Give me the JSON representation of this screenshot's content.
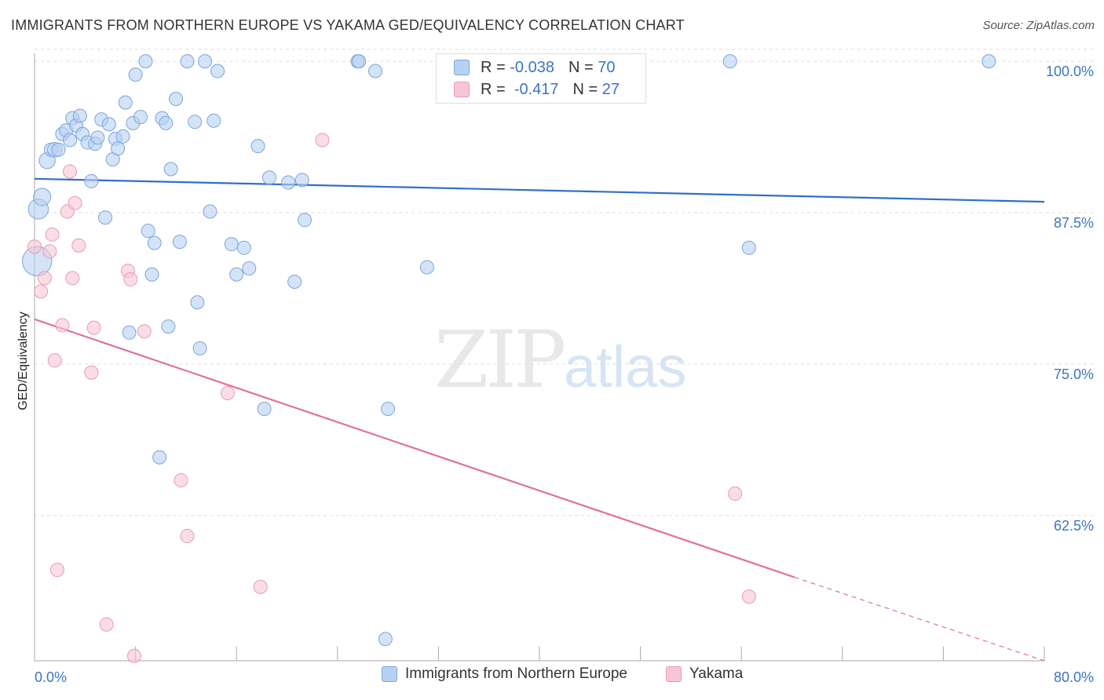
{
  "title": "IMMIGRANTS FROM NORTHERN EUROPE VS YAKAMA GED/EQUIVALENCY CORRELATION CHART",
  "source": "Source: ZipAtlas.com",
  "watermark": {
    "zip": "ZIP",
    "atlas": "atlas"
  },
  "stats": {
    "series1": {
      "r_label": "R =",
      "r": "-0.038",
      "n_label": "N =",
      "n": "70"
    },
    "series2": {
      "r_label": "R =",
      "r": "-0.417",
      "n_label": "N =",
      "n": "27"
    }
  },
  "colors": {
    "blue_fill": "#b7d1f2",
    "blue_stroke": "#7aa6dd",
    "blue_line": "#2f6fcc",
    "pink_fill": "#f7c6d4",
    "pink_stroke": "#eb9ab2",
    "pink_line": "#e0729a",
    "axis_text": "#3d74c6",
    "grid": "#dddddd"
  },
  "chart_data": {
    "type": "scatter",
    "title": "IMMIGRANTS FROM NORTHERN EUROPE VS YAKAMA GED/EQUIVALENCY CORRELATION CHART",
    "xlabel": "",
    "ylabel": "GED/Equivalency",
    "xlim": [
      0,
      80
    ],
    "ylim": [
      50.5,
      101.5
    ],
    "x_tick_labels": [
      "0.0%",
      "80.0%"
    ],
    "y_ticks": [
      62.5,
      75.0,
      87.5,
      100.0
    ],
    "y_tick_labels": [
      "62.5%",
      "75.0%",
      "87.5%",
      "100.0%"
    ],
    "grid": true,
    "legend_position": "bottom",
    "series": [
      {
        "name": "Immigrants from Northern Europe",
        "color": "blue",
        "trend": {
          "x0": 0,
          "y0": 90.3,
          "x1": 80,
          "y1": 88.4
        },
        "points": [
          [
            0.2,
            83.5,
            2.2
          ],
          [
            0.3,
            87.8,
            1.5
          ],
          [
            0.6,
            88.8,
            1.3
          ],
          [
            1.0,
            91.8,
            1.2
          ],
          [
            1.3,
            92.7,
            1.0
          ],
          [
            1.6,
            92.7,
            1.1
          ],
          [
            1.9,
            92.7,
            1.0
          ],
          [
            2.2,
            94.0,
            1.0
          ],
          [
            2.5,
            94.3,
            1.0
          ],
          [
            2.8,
            93.5,
            1.0
          ],
          [
            3.0,
            95.3,
            1.0
          ],
          [
            3.3,
            94.7,
            1.0
          ],
          [
            3.6,
            95.5,
            1.0
          ],
          [
            3.8,
            94.0,
            1.0
          ],
          [
            4.2,
            93.3,
            1.0
          ],
          [
            4.5,
            90.1,
            1.0
          ],
          [
            4.8,
            93.2,
            1.0
          ],
          [
            5.0,
            93.7,
            1.0
          ],
          [
            5.3,
            95.2,
            1.0
          ],
          [
            5.6,
            87.1,
            1.0
          ],
          [
            5.9,
            94.8,
            1.0
          ],
          [
            6.2,
            91.9,
            1.0
          ],
          [
            6.4,
            93.6,
            1.0
          ],
          [
            6.6,
            92.8,
            1.0
          ],
          [
            7.0,
            93.8,
            1.0
          ],
          [
            7.2,
            96.6,
            1.0
          ],
          [
            7.5,
            77.6,
            1.0
          ],
          [
            7.8,
            94.9,
            1.0
          ],
          [
            8.0,
            98.9,
            1.0
          ],
          [
            8.4,
            95.4,
            1.0
          ],
          [
            8.8,
            100.0,
            1.0
          ],
          [
            9.0,
            86.0,
            1.0
          ],
          [
            9.3,
            82.4,
            1.0
          ],
          [
            9.5,
            85.0,
            1.0
          ],
          [
            9.9,
            67.3,
            1.0
          ],
          [
            10.1,
            95.3,
            1.0
          ],
          [
            10.4,
            94.9,
            1.0
          ],
          [
            10.6,
            78.1,
            1.0
          ],
          [
            10.8,
            91.1,
            1.0
          ],
          [
            11.2,
            96.9,
            1.0
          ],
          [
            11.5,
            85.1,
            1.0
          ],
          [
            12.1,
            100.0,
            1.0
          ],
          [
            12.7,
            95.0,
            1.0
          ],
          [
            12.9,
            80.1,
            1.0
          ],
          [
            13.1,
            76.3,
            1.0
          ],
          [
            13.5,
            100.0,
            1.0
          ],
          [
            13.9,
            87.6,
            1.0
          ],
          [
            14.2,
            95.1,
            1.0
          ],
          [
            14.5,
            99.2,
            1.0
          ],
          [
            15.6,
            84.9,
            1.0
          ],
          [
            16.0,
            82.4,
            1.0
          ],
          [
            16.6,
            84.6,
            1.0
          ],
          [
            17.0,
            82.9,
            1.0
          ],
          [
            17.7,
            93.0,
            1.0
          ],
          [
            18.2,
            71.3,
            1.0
          ],
          [
            18.6,
            90.4,
            1.0
          ],
          [
            20.1,
            90.0,
            1.0
          ],
          [
            20.6,
            81.8,
            1.0
          ],
          [
            21.2,
            90.2,
            1.0
          ],
          [
            21.4,
            86.9,
            1.0
          ],
          [
            25.6,
            100.0,
            1.0
          ],
          [
            25.7,
            100.0,
            1.0
          ],
          [
            27.0,
            99.2,
            1.0
          ],
          [
            27.8,
            52.3,
            1.0
          ],
          [
            28.0,
            71.3,
            1.0
          ],
          [
            31.1,
            83.0,
            1.0
          ],
          [
            32.9,
            100.0,
            1.0
          ],
          [
            55.1,
            100.0,
            1.0
          ],
          [
            56.6,
            84.6,
            1.0
          ],
          [
            75.6,
            100.0,
            1.0
          ]
        ]
      },
      {
        "name": "Yakama",
        "color": "pink",
        "trend": {
          "x0": 0,
          "y0": 78.7,
          "x1": 60.2,
          "y1": 57.4,
          "dash_to": {
            "x": 80,
            "y": 50.5
          }
        },
        "points": [
          [
            0.0,
            84.7,
            1.0
          ],
          [
            0.5,
            81.0,
            1.0
          ],
          [
            0.8,
            82.1,
            1.0
          ],
          [
            1.2,
            84.3,
            1.0
          ],
          [
            1.4,
            85.7,
            1.0
          ],
          [
            1.6,
            75.3,
            1.0
          ],
          [
            1.8,
            58.0,
            1.0
          ],
          [
            2.2,
            78.2,
            1.0
          ],
          [
            2.6,
            87.6,
            1.0
          ],
          [
            2.8,
            90.9,
            1.0
          ],
          [
            3.0,
            82.1,
            1.0
          ],
          [
            3.2,
            88.3,
            1.0
          ],
          [
            3.5,
            84.8,
            1.0
          ],
          [
            4.5,
            74.3,
            1.0
          ],
          [
            4.7,
            78.0,
            1.0
          ],
          [
            5.7,
            53.5,
            1.0
          ],
          [
            7.4,
            82.7,
            1.0
          ],
          [
            7.6,
            82.0,
            1.0
          ],
          [
            7.9,
            50.9,
            1.0
          ],
          [
            8.7,
            77.7,
            1.0
          ],
          [
            11.6,
            65.4,
            1.0
          ],
          [
            12.1,
            60.8,
            1.0
          ],
          [
            15.3,
            72.6,
            1.0
          ],
          [
            17.9,
            56.6,
            1.0
          ],
          [
            22.8,
            93.5,
            1.0
          ],
          [
            55.5,
            64.3,
            1.0
          ],
          [
            56.6,
            55.8,
            1.0
          ]
        ]
      }
    ]
  },
  "legend": {
    "item1": "Immigrants from Northern Europe",
    "item2": "Yakama"
  }
}
